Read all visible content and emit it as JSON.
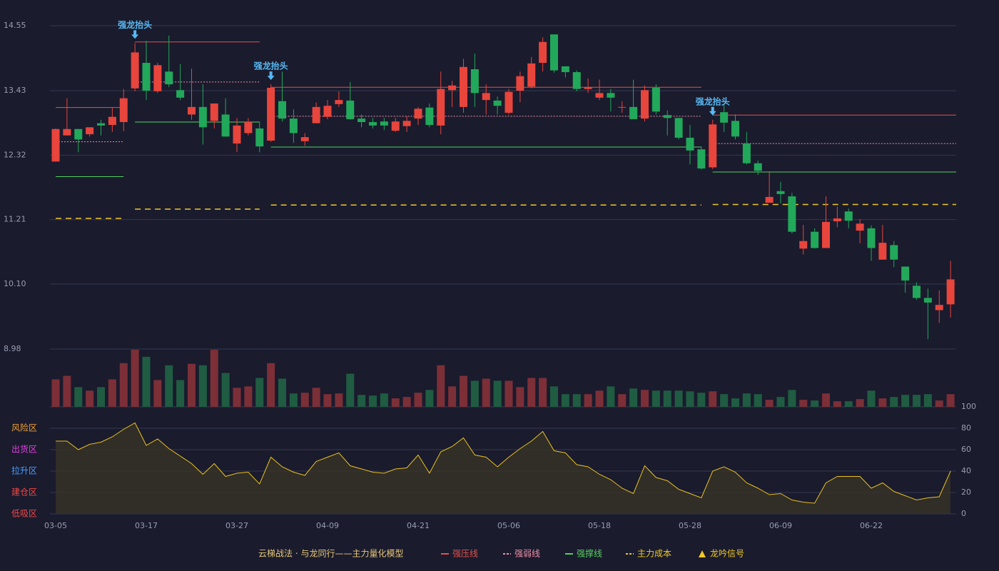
{
  "chart_data": {
    "type": "candlestick",
    "categories": [
      "03-05",
      null,
      null,
      null,
      null,
      null,
      null,
      null,
      "03-17",
      null,
      null,
      null,
      null,
      null,
      null,
      null,
      "03-27",
      null,
      null,
      null,
      null,
      null,
      null,
      null,
      "04-09",
      null,
      null,
      null,
      null,
      null,
      null,
      null,
      "04-21",
      null,
      null,
      null,
      null,
      null,
      null,
      null,
      "05-06",
      null,
      null,
      null,
      null,
      null,
      null,
      null,
      "05-18",
      null,
      null,
      null,
      null,
      null,
      null,
      null,
      "05-28",
      null,
      null,
      null,
      null,
      null,
      null,
      null,
      "06-09",
      null,
      null,
      null,
      null,
      null,
      null,
      null,
      "06-22",
      null,
      null,
      null,
      null,
      null,
      null,
      null
    ],
    "open": [
      12.21,
      12.66,
      12.77,
      12.68,
      12.87,
      12.84,
      12.89,
      13.47,
      13.91,
      13.42,
      13.76,
      13.44,
      13.02,
      13.15,
      12.91,
      13.02,
      12.52,
      12.7,
      12.78,
      12.57,
      13.25,
      12.95,
      12.56,
      12.87,
      12.98,
      13.2,
      13.26,
      12.95,
      12.89,
      12.9,
      12.74,
      12.82,
      12.95,
      13.14,
      12.83,
      13.44,
      13.15,
      13.8,
      13.27,
      13.26,
      13.05,
      13.43,
      13.5,
      13.91,
      14.4,
      13.85,
      13.75,
      13.46,
      13.31,
      13.39,
      13.14,
      13.15,
      12.95,
      13.48,
      13.01,
      12.96,
      12.62,
      12.42,
      12.11,
      13.06,
      12.91,
      12.52,
      12.18,
      11.5,
      11.7,
      11.61,
      10.71,
      11.0,
      10.72,
      11.18,
      11.35,
      11.02,
      11.06,
      10.52,
      10.77,
      10.4,
      10.07,
      9.86,
      9.65,
      9.75
    ],
    "high": [
      12.78,
      13.3,
      12.77,
      12.8,
      12.93,
      13.15,
      13.46,
      14.25,
      14.29,
      13.91,
      14.38,
      13.89,
      13.81,
      13.54,
      13.21,
      13.3,
      12.96,
      12.96,
      12.9,
      13.54,
      13.76,
      13.11,
      12.7,
      13.23,
      13.27,
      13.42,
      13.58,
      13.02,
      12.96,
      12.96,
      12.96,
      12.99,
      13.15,
      13.21,
      13.76,
      13.6,
      13.98,
      14.07,
      13.54,
      13.33,
      13.46,
      13.76,
      14.01,
      14.35,
      14.4,
      13.85,
      13.78,
      13.64,
      13.62,
      13.46,
      13.25,
      13.62,
      13.52,
      13.54,
      13.09,
      12.96,
      12.84,
      12.47,
      12.93,
      13.21,
      13.02,
      12.72,
      12.23,
      12.04,
      11.86,
      11.67,
      11.12,
      11.06,
      11.61,
      11.43,
      11.4,
      11.22,
      11.11,
      11.12,
      10.84,
      10.4,
      10.13,
      10.02,
      9.99,
      10.5
    ],
    "low": [
      12.21,
      12.66,
      12.37,
      12.64,
      12.66,
      12.72,
      12.73,
      13.42,
      13.27,
      13.39,
      13.49,
      13.27,
      12.93,
      12.5,
      12.78,
      12.64,
      12.37,
      12.66,
      12.37,
      12.55,
      12.9,
      12.53,
      12.48,
      12.87,
      12.94,
      13.15,
      12.93,
      12.8,
      12.78,
      12.75,
      12.72,
      12.72,
      12.84,
      12.8,
      12.68,
      13.15,
      13.05,
      13.15,
      13.02,
      13.02,
      13.02,
      13.23,
      13.47,
      13.76,
      13.74,
      13.66,
      13.42,
      13.39,
      13.27,
      13.07,
      13.05,
      12.94,
      12.9,
      13.02,
      12.66,
      12.59,
      12.16,
      12.07,
      12.08,
      12.72,
      12.59,
      12.16,
      11.98,
      11.5,
      11.49,
      10.97,
      10.61,
      10.71,
      10.72,
      11.08,
      11.06,
      10.8,
      10.5,
      10.52,
      10.39,
      9.95,
      9.83,
      9.15,
      9.43,
      9.52
    ],
    "close": [
      12.77,
      12.77,
      12.59,
      12.8,
      12.83,
      12.98,
      13.3,
      14.09,
      13.43,
      13.87,
      13.54,
      13.31,
      13.15,
      12.8,
      13.21,
      12.64,
      12.83,
      12.89,
      12.47,
      13.48,
      12.95,
      12.7,
      12.63,
      13.15,
      13.17,
      13.27,
      12.94,
      12.89,
      12.83,
      12.83,
      12.9,
      12.91,
      13.12,
      12.84,
      13.46,
      13.52,
      13.84,
      13.39,
      13.39,
      13.17,
      13.41,
      13.68,
      13.9,
      14.27,
      13.78,
      13.75,
      13.46,
      13.49,
      13.39,
      13.31,
      13.15,
      12.94,
      13.44,
      13.07,
      12.96,
      12.62,
      12.4,
      12.09,
      12.85,
      12.88,
      12.64,
      12.18,
      12.05,
      11.6,
      11.65,
      11.0,
      10.84,
      10.72,
      11.17,
      11.23,
      11.19,
      11.14,
      10.72,
      10.81,
      10.52,
      10.16,
      9.86,
      9.78,
      9.74,
      10.18
    ],
    "up_color": "#e8453c",
    "down_color": "#22a85a",
    "ylim": [
      8.98,
      14.55
    ],
    "yticks": [
      14.55,
      13.43,
      12.32,
      11.21,
      {
        "value": 10.1,
        "label": "10.10"
      },
      8.98
    ],
    "grid": true,
    "levels": [
      {
        "name": "强压线",
        "color": "#e0524c",
        "style": "solid",
        "segments": [
          {
            "from": 0,
            "to": 6,
            "value": 13.14
          },
          {
            "from": 7,
            "to": 18,
            "value": 14.27
          },
          {
            "from": 19,
            "to": 57,
            "value": 13.49
          },
          {
            "from": 58,
            "to": 79,
            "value": 13.01
          }
        ]
      },
      {
        "name": "强弱线",
        "color": "#f090a8",
        "style": "dotted",
        "segments": [
          {
            "from": 0,
            "to": 6,
            "value": 12.55
          },
          {
            "from": 7,
            "to": 18,
            "value": 13.58
          },
          {
            "from": 19,
            "to": 57,
            "value": 12.99
          },
          {
            "from": 58,
            "to": 79,
            "value": 12.52
          }
        ]
      },
      {
        "name": "强撑线",
        "color": "#56d060",
        "style": "solid",
        "segments": [
          {
            "from": 0,
            "to": 6,
            "value": 11.95
          },
          {
            "from": 7,
            "to": 18,
            "value": 12.89
          },
          {
            "from": 19,
            "to": 57,
            "value": 12.46
          },
          {
            "from": 58,
            "to": 79,
            "value": 12.03
          }
        ]
      },
      {
        "name": "主力成本",
        "color": "#f0c828",
        "style": "dashed",
        "segments": [
          {
            "from": 0,
            "to": 6,
            "value": 11.23
          },
          {
            "from": 7,
            "to": 18,
            "value": 11.39
          },
          {
            "from": 19,
            "to": 57,
            "value": 11.46
          },
          {
            "from": 58,
            "to": 79,
            "value": 11.47
          }
        ]
      }
    ],
    "signals": {
      "label": "强龙抬头",
      "color": "#56b8f2",
      "at": [
        7,
        19,
        58
      ]
    },
    "signal_legend": {
      "label": "龙吟信号",
      "color": "#f0c828"
    },
    "legend_title": "云梯战法 · 与龙同行——主力量化模型",
    "volume": {
      "values": [
        39,
        44,
        28,
        23,
        28,
        39,
        62,
        81,
        71,
        38,
        59,
        38,
        61,
        59,
        81,
        48,
        27,
        29,
        41,
        62,
        40,
        19,
        20,
        27,
        18,
        19,
        47,
        17,
        16,
        19,
        12,
        14,
        20,
        24,
        59,
        29,
        44,
        37,
        40,
        37,
        37,
        28,
        41,
        41,
        29,
        18,
        18,
        18,
        23,
        29,
        18,
        26,
        24,
        23,
        23,
        23,
        22,
        20,
        22,
        18,
        12,
        19,
        18,
        10,
        14,
        24,
        10,
        9,
        19,
        8,
        8,
        11,
        23,
        12,
        14,
        17,
        17,
        18,
        9,
        18
      ],
      "ylim": [
        0,
        82
      ],
      "up_color": "#7c2f37",
      "down_color": "#1f5c42"
    },
    "oscillator": {
      "values": [
        68,
        68,
        60,
        65,
        67,
        72,
        79,
        85,
        64,
        70,
        61,
        54,
        47,
        37,
        47,
        35,
        38,
        39,
        28,
        53,
        44,
        39,
        36,
        49,
        53,
        57,
        45,
        42,
        39,
        38,
        42,
        43,
        55,
        38,
        58,
        63,
        71,
        55,
        53,
        44,
        53,
        61,
        68,
        77,
        59,
        57,
        46,
        44,
        37,
        32,
        24,
        19,
        45,
        34,
        31,
        23,
        19,
        15,
        40,
        44,
        39,
        29,
        24,
        18,
        19,
        13,
        11,
        10,
        29,
        35,
        35,
        35,
        24,
        29,
        21,
        17,
        13,
        15,
        16,
        40
      ],
      "color": "#e8c020",
      "ylim": [
        0,
        100
      ],
      "yticks": [
        0,
        20,
        40,
        60,
        80,
        100
      ],
      "tick_colors": [
        "#f04848",
        "#f04848",
        "#4a9eff",
        "#e040e0",
        "#f0a030",
        "#3ee05a"
      ],
      "zones": [
        {
          "value": 80,
          "label": "风险区",
          "color": "#f0a030"
        },
        {
          "value": 60,
          "label": "出货区",
          "color": "#e040e0"
        },
        {
          "value": 40,
          "label": "拉升区",
          "color": "#4a9eff"
        },
        {
          "value": 20,
          "label": "建仓区",
          "color": "#f04848"
        },
        {
          "value": 0,
          "label": "低吸区",
          "color": "#f04848"
        }
      ]
    }
  }
}
